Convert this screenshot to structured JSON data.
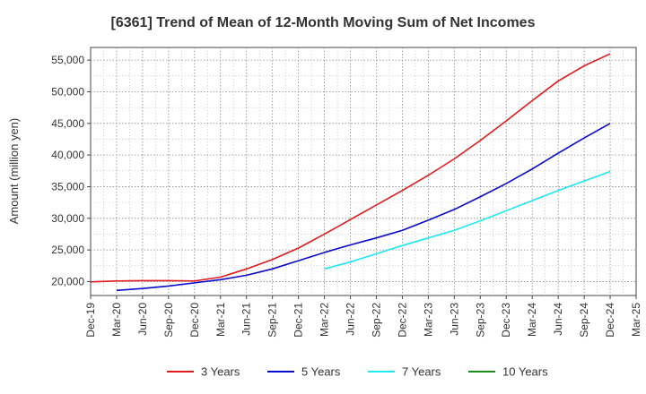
{
  "chart_data": {
    "type": "line",
    "title": "[6361]  Trend of Mean of 12-Month Moving Sum of Net Incomes",
    "xlabel": "",
    "ylabel": "Amount (million yen)",
    "ylim": [
      17800,
      57000
    ],
    "y_ticks": [
      20000,
      25000,
      30000,
      35000,
      40000,
      45000,
      50000,
      55000
    ],
    "y_tick_labels": [
      "20,000",
      "25,000",
      "30,000",
      "35,000",
      "40,000",
      "45,000",
      "50,000",
      "55,000"
    ],
    "categories": [
      "Dec-19",
      "Mar-20",
      "Jun-20",
      "Sep-20",
      "Dec-20",
      "Mar-21",
      "Jun-21",
      "Sep-21",
      "Dec-21",
      "Mar-22",
      "Jun-22",
      "Sep-22",
      "Dec-22",
      "Mar-23",
      "Jun-23",
      "Sep-23",
      "Dec-23",
      "Mar-24",
      "Jun-24",
      "Sep-24",
      "Dec-24",
      "Mar-25"
    ],
    "grid": true,
    "legend_position": "bottom",
    "series": [
      {
        "name": "3 Years",
        "color": "#e31a1c",
        "values": [
          19950,
          20100,
          20150,
          20150,
          20100,
          20700,
          22000,
          23500,
          25300,
          27500,
          29800,
          32100,
          34400,
          36800,
          39400,
          42300,
          45400,
          48600,
          51700,
          54100,
          56000,
          null
        ]
      },
      {
        "name": "5 Years",
        "color": "#0a0acc",
        "values": [
          null,
          18600,
          18900,
          19300,
          19800,
          20300,
          21000,
          22000,
          23300,
          24600,
          25800,
          26900,
          28100,
          29700,
          31400,
          33400,
          35500,
          37800,
          40300,
          42700,
          45000,
          null
        ]
      },
      {
        "name": "7 Years",
        "color": "#1ee8f0",
        "values": [
          null,
          null,
          null,
          null,
          null,
          null,
          null,
          null,
          null,
          22000,
          23100,
          24400,
          25700,
          26900,
          28100,
          29600,
          31200,
          32800,
          34400,
          35900,
          37400,
          null
        ]
      },
      {
        "name": "10 Years",
        "color": "#1a8a1a",
        "values": [
          null,
          null,
          null,
          null,
          null,
          null,
          null,
          null,
          null,
          null,
          null,
          null,
          null,
          null,
          null,
          null,
          null,
          null,
          null,
          null,
          null,
          null
        ]
      }
    ]
  }
}
